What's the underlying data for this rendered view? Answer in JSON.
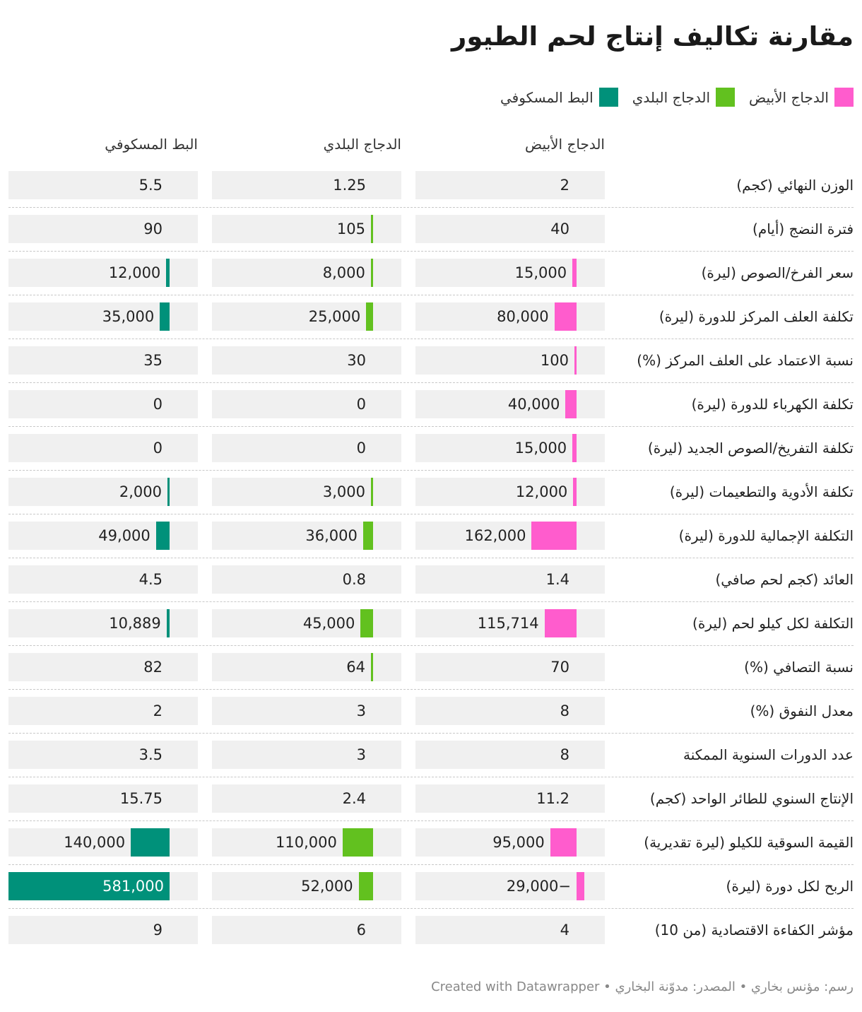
{
  "title": "مقارنة تكاليف إنتاج لحم الطيور",
  "footer": "رسم: مؤنس بخاري • المصدر: مدوّنة البخاري • Created with Datawrapper",
  "legend": [
    {
      "label": "الدجاج الأبيض",
      "color": "#ff5ccd"
    },
    {
      "label": "الدجاج البلدي",
      "color": "#62c11f"
    },
    {
      "label": "البط المسكوفي",
      "color": "#00917a"
    }
  ],
  "chart_data": {
    "type": "table",
    "title": "مقارنة تكاليف إنتاج لحم الطيور",
    "columns": [
      "الدجاج الأبيض",
      "الدجاج البلدي",
      "البط المسكوفي"
    ],
    "colors": [
      "#ff5ccd",
      "#62c11f",
      "#00917a"
    ],
    "rows": [
      {
        "label": "الوزن النهائي (كجم)",
        "values": [
          2,
          1.25,
          5.5
        ],
        "display": [
          "2",
          "1.25",
          "5.5"
        ],
        "bars": false
      },
      {
        "label": "فترة النضج (أيام)",
        "values": [
          40,
          105,
          90
        ],
        "display": [
          "40",
          "105",
          "90"
        ],
        "bars": [
          false,
          true,
          false
        ]
      },
      {
        "label": "سعر الفرخ/الصوص (ليرة)",
        "values": [
          15000,
          8000,
          12000
        ],
        "display": [
          "15,000",
          "8,000",
          "12,000"
        ],
        "bars": true
      },
      {
        "label": "تكلفة العلف المركز للدورة (ليرة)",
        "values": [
          80000,
          25000,
          35000
        ],
        "display": [
          "80,000",
          "25,000",
          "35,000"
        ],
        "bars": true
      },
      {
        "label": "نسبة الاعتماد على العلف المركز (%)",
        "values": [
          100,
          30,
          35
        ],
        "display": [
          "100",
          "30",
          "35"
        ],
        "bars": [
          true,
          false,
          false
        ]
      },
      {
        "label": "تكلفة الكهرباء للدورة (ليرة)",
        "values": [
          40000,
          0,
          0
        ],
        "display": [
          "40,000",
          "0",
          "0"
        ],
        "bars": true
      },
      {
        "label": "تكلفة التفريخ/الصوص الجديد (ليرة)",
        "values": [
          15000,
          0,
          0
        ],
        "display": [
          "15,000",
          "0",
          "0"
        ],
        "bars": true
      },
      {
        "label": "تكلفة الأدوية والتطعيمات (ليرة)",
        "values": [
          12000,
          3000,
          2000
        ],
        "display": [
          "12,000",
          "3,000",
          "2,000"
        ],
        "bars": true
      },
      {
        "label": "التكلفة الإجمالية للدورة (ليرة)",
        "values": [
          162000,
          36000,
          49000
        ],
        "display": [
          "162,000",
          "36,000",
          "49,000"
        ],
        "bars": true
      },
      {
        "label": "العائد (كجم لحم صافي)",
        "values": [
          1.4,
          0.8,
          4.5
        ],
        "display": [
          "1.4",
          "0.8",
          "4.5"
        ],
        "bars": false
      },
      {
        "label": "التكلفة لكل كيلو لحم (ليرة)",
        "values": [
          115714,
          45000,
          10889
        ],
        "display": [
          "115,714",
          "45,000",
          "10,889"
        ],
        "bars": true
      },
      {
        "label": "نسبة التصافي (%)",
        "values": [
          70,
          64,
          82
        ],
        "display": [
          "70",
          "64",
          "82"
        ],
        "bars": [
          false,
          true,
          false
        ]
      },
      {
        "label": "معدل النفوق (%)",
        "values": [
          8,
          3,
          2
        ],
        "display": [
          "8",
          "3",
          "2"
        ],
        "bars": false
      },
      {
        "label": "عدد الدورات السنوية الممكنة",
        "values": [
          8,
          3,
          3.5
        ],
        "display": [
          "8",
          "3",
          "3.5"
        ],
        "bars": false
      },
      {
        "label": "الإنتاج السنوي للطائر الواحد (كجم)",
        "values": [
          11.2,
          2.4,
          15.75
        ],
        "display": [
          "11.2",
          "2.4",
          "15.75"
        ],
        "bars": false
      },
      {
        "label": "القيمة السوقية للكيلو (ليرة تقديرية)",
        "values": [
          95000,
          110000,
          140000
        ],
        "display": [
          "95,000",
          "110,000",
          "140,000"
        ],
        "bars": true
      },
      {
        "label": "الربح لكل دورة (ليرة)",
        "values": [
          -29000,
          52000,
          581000
        ],
        "display": [
          "29,000−",
          "52,000",
          "581,000"
        ],
        "bars": true
      },
      {
        "label": "مؤشر الكفاءة الاقتصادية (من 10)",
        "values": [
          4,
          6,
          9
        ],
        "display": [
          "4",
          "6",
          "9"
        ],
        "bars": false
      }
    ]
  }
}
